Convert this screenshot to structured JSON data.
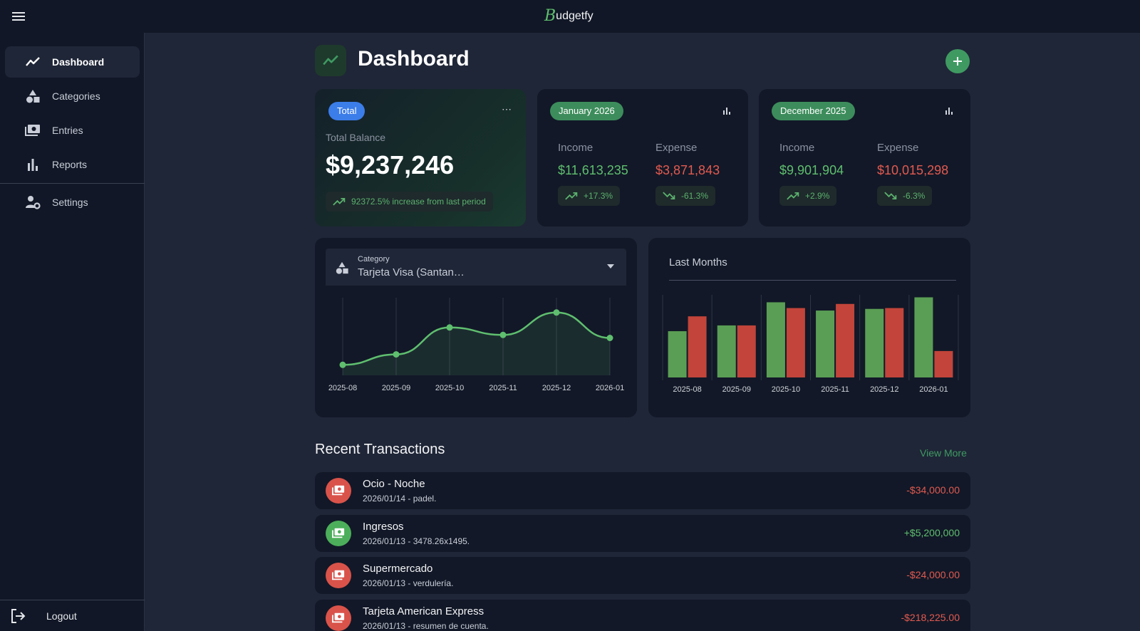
{
  "app": {
    "logo_letter": "B",
    "logo_rest": "udgetfy"
  },
  "sidebar": {
    "items": [
      {
        "label": "Dashboard",
        "icon": "trend-line-icon"
      },
      {
        "label": "Categories",
        "icon": "shapes-icon"
      },
      {
        "label": "Entries",
        "icon": "cash-icon"
      },
      {
        "label": "Reports",
        "icon": "bar-chart-icon"
      },
      {
        "label": "Settings",
        "icon": "user-settings-icon"
      }
    ],
    "logout_label": "Logout"
  },
  "header": {
    "title": "Dashboard",
    "add_icon": "plus-icon"
  },
  "total_card": {
    "pill": "Total",
    "label": "Total Balance",
    "amount": "$9,237,246",
    "change": "92372.5% increase from last period"
  },
  "month_cards": [
    {
      "pill": "January 2026",
      "income_label": "Income",
      "expense_label": "Expense",
      "income": "$11,613,235",
      "expense": "$3,871,843",
      "income_change": "+17.3%",
      "expense_change": "-61.3%"
    },
    {
      "pill": "December 2025",
      "income_label": "Income",
      "expense_label": "Expense",
      "income": "$9,901,904",
      "expense": "$10,015,298",
      "income_change": "+2.9%",
      "expense_change": "-6.3%"
    }
  ],
  "category_select": {
    "label": "Category",
    "value": "Tarjeta Visa (Santan…"
  },
  "line_chart": {
    "type": "area",
    "x": [
      "2025-08",
      "2025-09",
      "2025-10",
      "2025-11",
      "2025-12",
      "2026-01"
    ],
    "values": [
      0.14,
      0.28,
      0.64,
      0.54,
      0.84,
      0.5
    ],
    "color": "#5fbf6f"
  },
  "bar_chart": {
    "type": "bar",
    "title": "Last Months",
    "categories": [
      "2025-08",
      "2025-09",
      "2025-10",
      "2025-11",
      "2025-12",
      "2026-01"
    ],
    "series": [
      {
        "values": [
          0.56,
          0.63,
          0.91,
          0.81,
          0.83,
          0.97
        ],
        "color": "#5a9e55"
      },
      {
        "values": [
          0.74,
          0.63,
          0.84,
          0.89,
          0.84,
          0.32
        ],
        "color": "#c2443a"
      }
    ]
  },
  "transactions": {
    "title": "Recent Transactions",
    "view_more": "View More",
    "items": [
      {
        "name": "Ocio - Noche",
        "sub": "2026/01/14 - padel.",
        "amount": "-$34,000.00",
        "kind": "expense"
      },
      {
        "name": "Ingresos",
        "sub": "2026/01/13 - 3478.26x1495.",
        "amount": "+$5,200,000",
        "kind": "income"
      },
      {
        "name": "Supermercado",
        "sub": "2026/01/13 - verdulería.",
        "amount": "-$24,000.00",
        "kind": "expense"
      },
      {
        "name": "Tarjeta American Express",
        "sub": "2026/01/13 - resumen de cuenta.",
        "amount": "-$218,225.00",
        "kind": "expense"
      }
    ]
  },
  "colors": {
    "income": "#5fbf6f",
    "expense": "#e25a50",
    "accent": "#3f9a62",
    "blue": "#3b7de9"
  }
}
